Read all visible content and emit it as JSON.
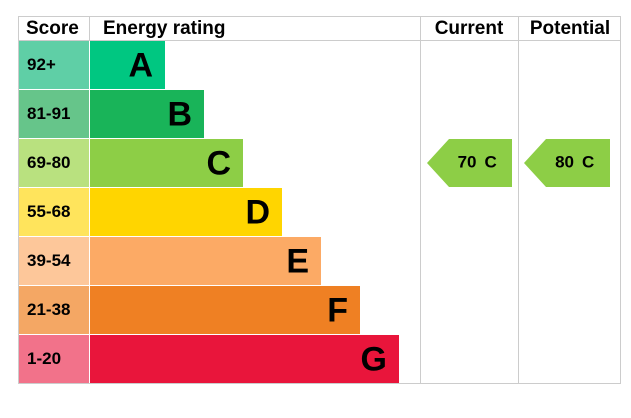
{
  "chart_data": {
    "type": "epc",
    "headers": [
      "Score",
      "Energy rating",
      "Current",
      "Potential"
    ],
    "bands": [
      {
        "score": "92+",
        "letter": "A",
        "color": "#00c781",
        "tint": "#5fcfa6"
      },
      {
        "score": "81-91",
        "letter": "B",
        "color": "#19b459",
        "tint": "#66c58a"
      },
      {
        "score": "69-80",
        "letter": "C",
        "color": "#8dce46",
        "tint": "#b9e17f"
      },
      {
        "score": "55-68",
        "letter": "D",
        "color": "#ffd500",
        "tint": "#ffe45c"
      },
      {
        "score": "39-54",
        "letter": "E",
        "color": "#fcaa65",
        "tint": "#fdc79a"
      },
      {
        "score": "21-38",
        "letter": "F",
        "color": "#ef8023",
        "tint": "#f4a764"
      },
      {
        "score": "1-20",
        "letter": "G",
        "color": "#e9153b",
        "tint": "#f2728a"
      }
    ],
    "current": {
      "value": 70,
      "rating": "C"
    },
    "potential": {
      "value": 80,
      "rating": "C"
    }
  }
}
